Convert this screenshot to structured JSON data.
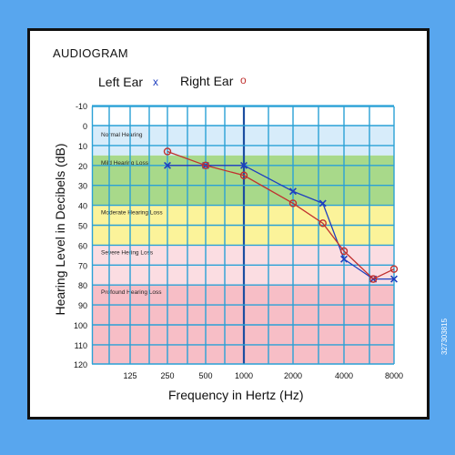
{
  "chart_data": {
    "type": "line",
    "title": "AUDIOGRAM",
    "xlabel": "Frequency in Hertz (Hz)",
    "ylabel": "Hearing Level in Decibels (dB)",
    "x_scale": "log",
    "x_ticks": [
      "125",
      "250",
      "500",
      "1000",
      "2000",
      "4000",
      "8000"
    ],
    "y_ticks": [
      "-10",
      "0",
      "10",
      "20",
      "30",
      "40",
      "50",
      "60",
      "70",
      "80",
      "90",
      "100",
      "110",
      "120"
    ],
    "ylim": [
      -10,
      120
    ],
    "y_inverted": true,
    "grid": true,
    "bands": [
      {
        "label": "Normal Hearing",
        "from": 0,
        "to": 15,
        "color": "#d7ecfa"
      },
      {
        "label": "Mild Hearing Loss",
        "from": 15,
        "to": 40,
        "color": "#a8d98a"
      },
      {
        "label": "Moderate Hearing Loss",
        "from": 40,
        "to": 60,
        "color": "#fbf39a"
      },
      {
        "label": "Severe Hering Loss",
        "from": 60,
        "to": 80,
        "color": "#fbdde2"
      },
      {
        "label": "Profound Hearing Loss",
        "from": 80,
        "to": 120,
        "color": "#f7bec6"
      }
    ],
    "series": [
      {
        "name": "Left Ear",
        "marker": "x",
        "color": "#1f3fbf",
        "x": [
          250,
          500,
          1000,
          2000,
          3000,
          4000,
          6000,
          8000
        ],
        "y": [
          20,
          20,
          20,
          33,
          39,
          67,
          77,
          77
        ]
      },
      {
        "name": "Right Ear",
        "marker": "o",
        "color": "#c0312f",
        "x": [
          250,
          500,
          1000,
          2000,
          3000,
          4000,
          6000,
          8000
        ],
        "y": [
          13,
          20,
          25,
          39,
          49,
          63,
          77,
          72
        ]
      }
    ],
    "legend": {
      "left_label": "Left Ear",
      "left_symbol": "x",
      "right_label": "Right Ear",
      "right_symbol": "o"
    }
  },
  "watermark": "327303815"
}
